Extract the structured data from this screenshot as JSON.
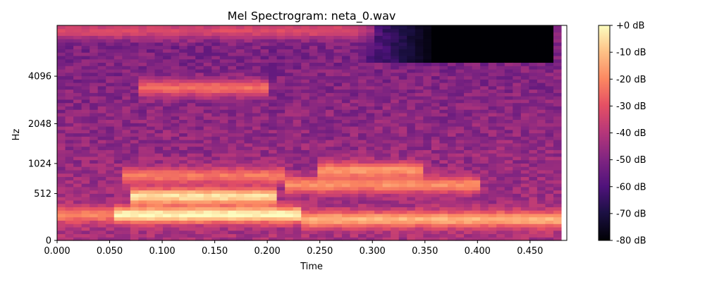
{
  "chart_data": {
    "type": "heatmap",
    "title": "Mel Spectrogram: neta_0.wav",
    "xlabel": "Time",
    "ylabel": "Hz",
    "xlim": [
      0.0,
      0.485
    ],
    "x_ticks": [
      {
        "value": 0.0,
        "label": "0.000"
      },
      {
        "value": 0.05,
        "label": "0.050"
      },
      {
        "value": 0.1,
        "label": "0.100"
      },
      {
        "value": 0.15,
        "label": "0.150"
      },
      {
        "value": 0.2,
        "label": "0.200"
      },
      {
        "value": 0.25,
        "label": "0.250"
      },
      {
        "value": 0.3,
        "label": "0.300"
      },
      {
        "value": 0.35,
        "label": "0.350"
      },
      {
        "value": 0.4,
        "label": "0.400"
      },
      {
        "value": 0.45,
        "label": "0.450"
      }
    ],
    "y_scale": "mel",
    "y_ticks": [
      {
        "value": 0,
        "label": "0"
      },
      {
        "value": 512,
        "label": "512"
      },
      {
        "value": 1024,
        "label": "1024"
      },
      {
        "value": 2048,
        "label": "2048"
      },
      {
        "value": 4096,
        "label": "4096"
      }
    ],
    "ylim": [
      0,
      8000
    ],
    "colormap": "magma",
    "colorbar": {
      "range": [
        -80,
        0
      ],
      "ticks": [
        {
          "value": 0,
          "label": "+0 dB"
        },
        {
          "value": -10,
          "label": "-10 dB"
        },
        {
          "value": -20,
          "label": "-20 dB"
        },
        {
          "value": -30,
          "label": "-30 dB"
        },
        {
          "value": -40,
          "label": "-40 dB"
        },
        {
          "value": -50,
          "label": "-50 dB"
        },
        {
          "value": -60,
          "label": "-60 dB"
        },
        {
          "value": -70,
          "label": "-70 dB"
        },
        {
          "value": -80,
          "label": "-80 dB"
        }
      ]
    },
    "bands": [
      {
        "t0": 0.0,
        "t1": 0.055,
        "f": 250,
        "db": -20
      },
      {
        "t0": 0.055,
        "t1": 0.235,
        "f": 250,
        "db": 0
      },
      {
        "t0": 0.235,
        "t1": 0.48,
        "f": 200,
        "db": -12
      },
      {
        "t0": 0.07,
        "t1": 0.21,
        "f": 480,
        "db": -4
      },
      {
        "t0": 0.06,
        "t1": 0.22,
        "f": 800,
        "db": -22
      },
      {
        "t0": 0.22,
        "t1": 0.4,
        "f": 650,
        "db": -18
      },
      {
        "t0": 0.25,
        "t1": 0.35,
        "f": 900,
        "db": -17
      },
      {
        "t0": 0.08,
        "t1": 0.2,
        "f": 3500,
        "db": -24
      },
      {
        "t0": 0.0,
        "t1": 0.3,
        "f": 7500,
        "db": -32
      }
    ],
    "quiet_region": {
      "t0": 0.28,
      "t1": 0.475,
      "f0": 5000,
      "f1": 8000,
      "db": -80
    }
  }
}
